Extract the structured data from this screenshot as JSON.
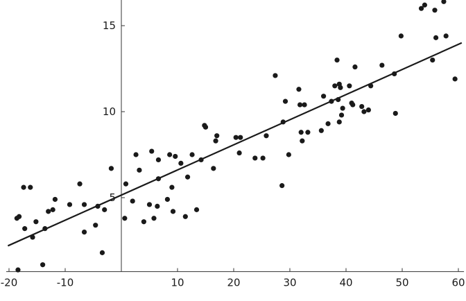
{
  "chart_data": {
    "type": "scatter",
    "title": "",
    "xlabel": "",
    "ylabel": "",
    "xlim": [
      -20.5,
      61
    ],
    "ylim": [
      0.7,
      16.5
    ],
    "x_ticks": [
      -20,
      -10,
      10,
      20,
      30,
      40,
      50,
      60
    ],
    "x_tick_labels": [
      "-20",
      "-10",
      "10",
      "20",
      "30",
      "40",
      "50",
      "60"
    ],
    "y_ticks": [
      5,
      10,
      15
    ],
    "y_tick_labels": [
      "5",
      "10",
      "15"
    ],
    "grid": false,
    "legend": "none",
    "colors": {
      "points": "#1a1a1a",
      "fit_line": "#1a1a1a",
      "axes": "#333333"
    },
    "points": [
      [
        -18.6,
        3.8
      ],
      [
        -18.2,
        3.9
      ],
      [
        -17.4,
        5.6
      ],
      [
        -17.2,
        3.2
      ],
      [
        -16.2,
        5.6
      ],
      [
        -15.8,
        2.7
      ],
      [
        -15.2,
        3.6
      ],
      [
        -13.6,
        3.2
      ],
      [
        -13.0,
        4.2
      ],
      [
        -12.2,
        4.3
      ],
      [
        -11.8,
        4.9
      ],
      [
        -9.2,
        4.6
      ],
      [
        -7.4,
        5.8
      ],
      [
        -6.6,
        4.6
      ],
      [
        -6.6,
        3.0
      ],
      [
        -4.6,
        3.4
      ],
      [
        -4.2,
        4.5
      ],
      [
        -3.4,
        1.8
      ],
      [
        -3.0,
        4.3
      ],
      [
        -1.8,
        6.7
      ],
      [
        0.6,
        3.8
      ],
      [
        0.8,
        5.8
      ],
      [
        2.0,
        4.8
      ],
      [
        2.6,
        7.5
      ],
      [
        3.2,
        6.6
      ],
      [
        4.0,
        3.6
      ],
      [
        5.0,
        4.6
      ],
      [
        5.4,
        7.7
      ],
      [
        5.8,
        3.8
      ],
      [
        6.4,
        4.5
      ],
      [
        6.6,
        6.1
      ],
      [
        6.6,
        7.2
      ],
      [
        8.2,
        4.9
      ],
      [
        8.6,
        7.5
      ],
      [
        9.0,
        5.6
      ],
      [
        9.2,
        4.2
      ],
      [
        9.6,
        7.4
      ],
      [
        10.6,
        7.0
      ],
      [
        11.4,
        3.9
      ],
      [
        11.8,
        6.2
      ],
      [
        12.6,
        7.5
      ],
      [
        13.4,
        4.3
      ],
      [
        14.2,
        7.2
      ],
      [
        14.8,
        9.2
      ],
      [
        15.0,
        9.1
      ],
      [
        16.4,
        6.7
      ],
      [
        16.8,
        8.3
      ],
      [
        17.0,
        8.6
      ],
      [
        20.4,
        8.5
      ],
      [
        21.0,
        7.6
      ],
      [
        21.2,
        8.5
      ],
      [
        23.8,
        7.3
      ],
      [
        25.2,
        7.3
      ],
      [
        25.8,
        8.6
      ],
      [
        27.4,
        12.1
      ],
      [
        28.6,
        5.7
      ],
      [
        28.8,
        9.4
      ],
      [
        29.2,
        10.6
      ],
      [
        29.8,
        7.5
      ],
      [
        31.6,
        11.3
      ],
      [
        31.8,
        10.4
      ],
      [
        32.0,
        8.8
      ],
      [
        32.2,
        8.3
      ],
      [
        32.6,
        10.4
      ],
      [
        33.2,
        8.8
      ],
      [
        35.6,
        8.9
      ],
      [
        36.0,
        10.9
      ],
      [
        36.8,
        9.3
      ],
      [
        37.4,
        10.6
      ],
      [
        38.0,
        11.5
      ],
      [
        38.4,
        13.0
      ],
      [
        38.6,
        10.7
      ],
      [
        38.8,
        9.4
      ],
      [
        38.8,
        11.6
      ],
      [
        39.0,
        11.4
      ],
      [
        39.2,
        9.8
      ],
      [
        39.4,
        10.2
      ],
      [
        40.6,
        11.5
      ],
      [
        41.0,
        10.5
      ],
      [
        41.2,
        10.4
      ],
      [
        41.6,
        12.6
      ],
      [
        42.8,
        10.3
      ],
      [
        43.2,
        10.0
      ],
      [
        44.0,
        10.1
      ],
      [
        44.4,
        11.5
      ],
      [
        46.4,
        12.7
      ],
      [
        48.6,
        12.2
      ],
      [
        48.8,
        9.9
      ],
      [
        49.8,
        14.4
      ],
      [
        53.4,
        16.0
      ],
      [
        54.0,
        16.2
      ],
      [
        55.4,
        13.0
      ],
      [
        55.8,
        15.9
      ],
      [
        56.0,
        14.3
      ],
      [
        57.4,
        16.4
      ],
      [
        57.8,
        14.4
      ],
      [
        59.4,
        11.9
      ],
      [
        -18.4,
        0.8
      ],
      [
        -14.0,
        1.1
      ]
    ],
    "fit_line": {
      "x": [
        -20.2,
        60.6
      ],
      "y": [
        2.2,
        14.0
      ]
    }
  }
}
